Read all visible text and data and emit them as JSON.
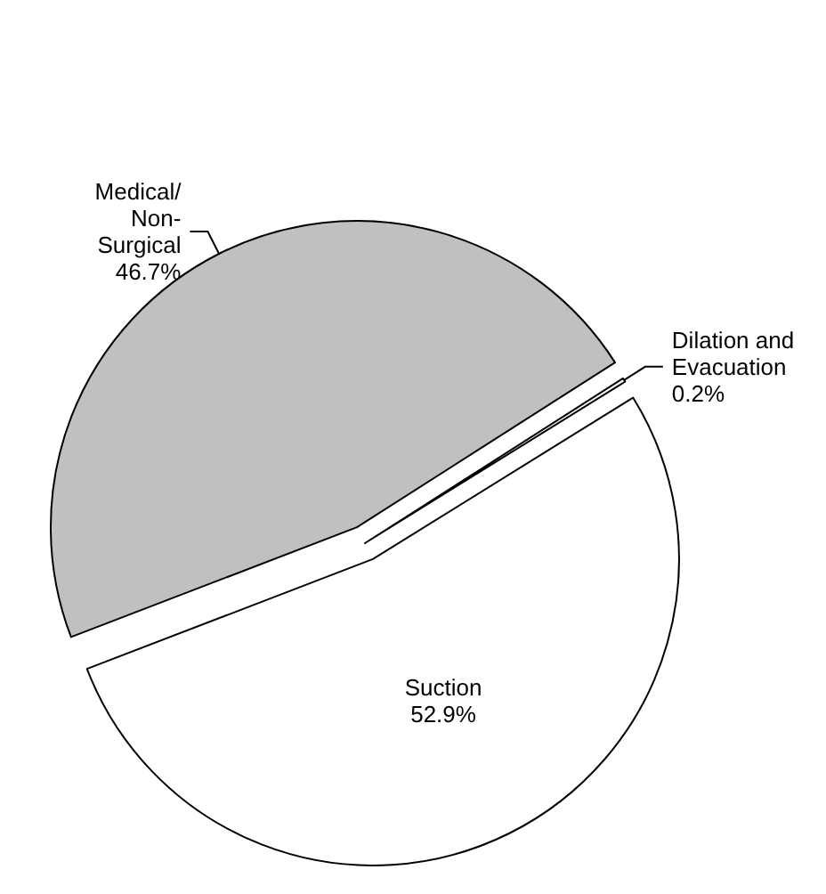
{
  "chart_data": {
    "type": "pie",
    "categories": [
      "Medical/\nNon-\nSurgical",
      "Dilation and\nEvacuation",
      "Suction"
    ],
    "values": [
      46.7,
      0.2,
      52.9
    ],
    "colors": [
      "#c0c0c0",
      "#ffffff",
      "#ffffff"
    ],
    "value_labels": [
      "46.7%",
      "0.2%",
      "52.9%"
    ],
    "legend": false
  }
}
